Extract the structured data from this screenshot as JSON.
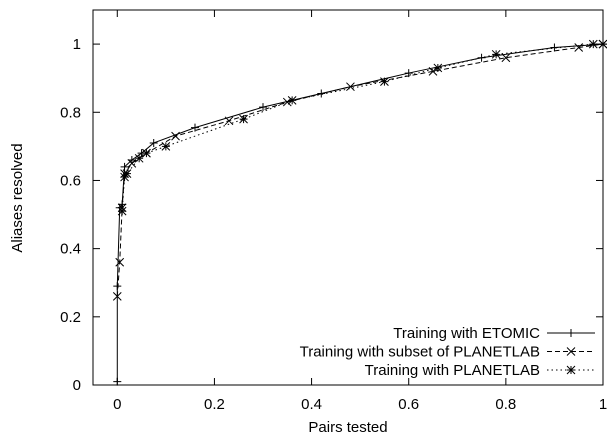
{
  "chart_data": {
    "type": "line",
    "x_label": "Pairs tested",
    "y_label": "Aliases resolved",
    "xlim": [
      -0.05,
      1
    ],
    "ylim": [
      0,
      1.1
    ],
    "xticks": [
      0,
      0.2,
      0.4,
      0.6,
      0.8,
      1
    ],
    "yticks": [
      0,
      0.2,
      0.4,
      0.6,
      0.8,
      1
    ],
    "legend": "bottom-right",
    "series": [
      {
        "name": "Training with ETOMIC",
        "color": "#000000",
        "dash": "solid",
        "marker": "plus",
        "x": [
          0,
          0,
          0.005,
          0.01,
          0.015,
          0.03,
          0.05,
          0.075,
          0.16,
          0.3,
          0.42,
          0.6,
          0.75,
          0.9,
          1
        ],
        "values": [
          0.01,
          0.29,
          0.52,
          0.53,
          0.64,
          0.66,
          0.68,
          0.71,
          0.755,
          0.815,
          0.855,
          0.915,
          0.96,
          0.99,
          1
        ]
      },
      {
        "name": "Training with subset of PLANETLAB",
        "color": "#000000",
        "dash": "dashed",
        "marker": "cross",
        "x": [
          0,
          0.005,
          0.01,
          0.015,
          0.03,
          0.06,
          0.12,
          0.23,
          0.35,
          0.48,
          0.65,
          0.8,
          0.95,
          1
        ],
        "values": [
          0.26,
          0.36,
          0.52,
          0.62,
          0.65,
          0.68,
          0.73,
          0.775,
          0.83,
          0.875,
          0.92,
          0.96,
          0.99,
          1
        ]
      },
      {
        "name": "Training with PLANETLAB",
        "color": "#000000",
        "dash": "dotted",
        "marker": "star",
        "x": [
          0.01,
          0.015,
          0.02,
          0.045,
          0.06,
          0.1,
          0.26,
          0.36,
          0.55,
          0.66,
          0.78,
          0.98,
          1
        ],
        "values": [
          0.51,
          0.61,
          0.62,
          0.665,
          0.68,
          0.7,
          0.78,
          0.835,
          0.89,
          0.93,
          0.97,
          1,
          1
        ]
      }
    ]
  }
}
